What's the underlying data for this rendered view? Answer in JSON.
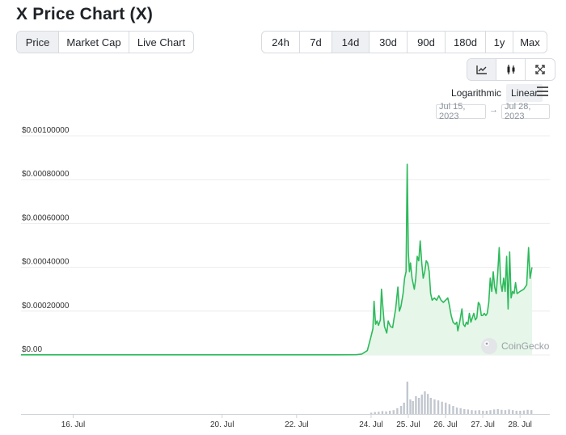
{
  "title": "X Price Chart (X)",
  "chart_tabs": [
    {
      "label": "Price",
      "active": true
    },
    {
      "label": "Market Cap",
      "active": false
    },
    {
      "label": "Live Chart",
      "active": false
    }
  ],
  "range_tabs": [
    {
      "label": "24h",
      "active": false
    },
    {
      "label": "7d",
      "active": false
    },
    {
      "label": "14d",
      "active": true
    },
    {
      "label": "30d",
      "active": false
    },
    {
      "label": "90d",
      "active": false
    },
    {
      "label": "180d",
      "active": false
    },
    {
      "label": "1y",
      "active": false
    },
    {
      "label": "Max",
      "active": false
    }
  ],
  "view_tabs": [
    {
      "icon": "line-chart-icon",
      "active": true
    },
    {
      "icon": "candlestick-icon",
      "active": false
    },
    {
      "icon": "expand-icon",
      "active": false
    }
  ],
  "scale": {
    "log_label": "Logarithmic",
    "linear_label": "Linear",
    "active": "Linear"
  },
  "date_range": {
    "from": "Jul 15, 2023",
    "arrow": "→",
    "to": "Jul 28, 2023"
  },
  "watermark": "CoinGecko",
  "colors": {
    "line": "#2dba5b",
    "area": "#e6f6e9",
    "volume": "#c2c7cf",
    "grid": "#ececec"
  },
  "chart_data": {
    "type": "area",
    "ylim": [
      0,
      0.001
    ],
    "y_ticks": [
      "$0.00",
      "$0.00020000",
      "$0.00040000",
      "$0.00060000",
      "$0.00080000",
      "$0.00100000"
    ],
    "y_tick_values": [
      0,
      0.0002,
      0.0004,
      0.0006,
      0.0008,
      0.001
    ],
    "x_ticks": [
      "16. Jul",
      "20. Jul",
      "22. Jul",
      "24. Jul",
      "25. Jul",
      "26. Jul",
      "27. Jul",
      "28. Jul"
    ],
    "xlim": [
      14.6,
      28.8
    ],
    "x_tick_values": [
      16.0,
      20.0,
      22.0,
      24.0,
      25.0,
      26.0,
      27.0,
      28.0
    ],
    "price": [
      [
        14.6,
        8.5e-07
      ],
      [
        16.0,
        8.5e-07
      ],
      [
        17.0,
        8.5e-07
      ],
      [
        18.0,
        8.5e-07
      ],
      [
        19.0,
        8.5e-07
      ],
      [
        20.0,
        8.5e-07
      ],
      [
        21.0,
        8.5e-07
      ],
      [
        22.0,
        8.5e-07
      ],
      [
        23.0,
        8.5e-07
      ],
      [
        23.6,
        1.2e-06
      ],
      [
        23.75,
        4e-06
      ],
      [
        23.9,
        2e-05
      ],
      [
        24.0,
        8.5e-05
      ],
      [
        24.05,
        0.00012
      ],
      [
        24.08,
        0.000245
      ],
      [
        24.12,
        0.00014
      ],
      [
        24.16,
        0.000155
      ],
      [
        24.2,
        0.000135
      ],
      [
        24.25,
        0.00016
      ],
      [
        24.28,
        0.0003
      ],
      [
        24.32,
        0.00021
      ],
      [
        24.36,
        0.00013
      ],
      [
        24.42,
        0.0001
      ],
      [
        24.46,
        0.000155
      ],
      [
        24.52,
        0.00013
      ],
      [
        24.58,
        0.000125
      ],
      [
        24.62,
        0.00017
      ],
      [
        24.66,
        0.00021
      ],
      [
        24.72,
        0.00031
      ],
      [
        24.76,
        0.0002
      ],
      [
        24.8,
        0.00022
      ],
      [
        24.86,
        0.00028
      ],
      [
        24.9,
        0.00035
      ],
      [
        24.94,
        0.00038
      ],
      [
        24.97,
        0.00087
      ],
      [
        25.0,
        0.00047
      ],
      [
        25.03,
        0.00038
      ],
      [
        25.06,
        0.00042
      ],
      [
        25.1,
        0.00035
      ],
      [
        25.16,
        0.0003
      ],
      [
        25.2,
        0.00035
      ],
      [
        25.24,
        0.00045
      ],
      [
        25.28,
        0.00043
      ],
      [
        25.32,
        0.00052
      ],
      [
        25.36,
        0.00042
      ],
      [
        25.4,
        0.00035
      ],
      [
        25.44,
        0.00038
      ],
      [
        25.48,
        0.00043
      ],
      [
        25.52,
        0.00042
      ],
      [
        25.56,
        0.00038
      ],
      [
        25.6,
        0.00028
      ],
      [
        25.64,
        0.00025
      ],
      [
        25.7,
        0.00026
      ],
      [
        25.76,
        0.00025
      ],
      [
        25.82,
        0.00027
      ],
      [
        25.88,
        0.00025
      ],
      [
        25.94,
        0.00024
      ],
      [
        26.0,
        0.00025
      ],
      [
        26.06,
        0.00026
      ],
      [
        26.1,
        0.00023
      ],
      [
        26.15,
        0.00018
      ],
      [
        26.2,
        0.00015
      ],
      [
        26.26,
        0.00014
      ],
      [
        26.3,
        0.00015
      ],
      [
        26.33,
        0.00011
      ],
      [
        26.38,
        0.00015
      ],
      [
        26.44,
        0.00021
      ],
      [
        26.48,
        0.00014
      ],
      [
        26.52,
        0.00013
      ],
      [
        26.56,
        0.00015
      ],
      [
        26.6,
        0.00014
      ],
      [
        26.64,
        0.00019
      ],
      [
        26.68,
        0.00015
      ],
      [
        26.72,
        0.00017
      ],
      [
        26.76,
        0.00019
      ],
      [
        26.8,
        0.00016
      ],
      [
        26.84,
        0.00017
      ],
      [
        26.88,
        0.00024
      ],
      [
        26.92,
        0.00023
      ],
      [
        26.96,
        0.00018
      ],
      [
        27.0,
        0.00018
      ],
      [
        27.04,
        0.00019
      ],
      [
        27.08,
        0.00018
      ],
      [
        27.12,
        0.00019
      ],
      [
        27.16,
        0.00024
      ],
      [
        27.2,
        0.00035
      ],
      [
        27.24,
        0.00029
      ],
      [
        27.28,
        0.00038
      ],
      [
        27.32,
        0.00031
      ],
      [
        27.36,
        0.00028
      ],
      [
        27.4,
        0.00037
      ],
      [
        27.44,
        0.00049
      ],
      [
        27.48,
        0.00033
      ],
      [
        27.52,
        0.00029
      ],
      [
        27.56,
        0.00035
      ],
      [
        27.6,
        0.00029
      ],
      [
        27.64,
        0.00045
      ],
      [
        27.68,
        0.00021
      ],
      [
        27.72,
        0.00047
      ],
      [
        27.76,
        0.00026
      ],
      [
        27.8,
        0.00029
      ],
      [
        27.84,
        0.00028
      ],
      [
        27.88,
        0.00033
      ],
      [
        27.92,
        0.00028
      ],
      [
        28.0,
        0.00029
      ],
      [
        28.1,
        0.0003
      ],
      [
        28.18,
        0.00032
      ],
      [
        28.23,
        0.00049
      ],
      [
        28.27,
        0.00035
      ],
      [
        28.32,
        0.0004
      ]
    ],
    "volume": [
      [
        24.0,
        0.04
      ],
      [
        24.1,
        0.06
      ],
      [
        24.2,
        0.07
      ],
      [
        24.3,
        0.09
      ],
      [
        24.4,
        0.08
      ],
      [
        24.5,
        0.1
      ],
      [
        24.6,
        0.12
      ],
      [
        24.7,
        0.18
      ],
      [
        24.8,
        0.25
      ],
      [
        24.88,
        0.35
      ],
      [
        24.97,
        1.0
      ],
      [
        25.05,
        0.45
      ],
      [
        25.12,
        0.4
      ],
      [
        25.2,
        0.55
      ],
      [
        25.28,
        0.5
      ],
      [
        25.36,
        0.6
      ],
      [
        25.44,
        0.7
      ],
      [
        25.52,
        0.62
      ],
      [
        25.6,
        0.5
      ],
      [
        25.7,
        0.45
      ],
      [
        25.8,
        0.42
      ],
      [
        25.9,
        0.38
      ],
      [
        26.0,
        0.35
      ],
      [
        26.1,
        0.3
      ],
      [
        26.2,
        0.25
      ],
      [
        26.3,
        0.2
      ],
      [
        26.4,
        0.18
      ],
      [
        26.5,
        0.15
      ],
      [
        26.6,
        0.14
      ],
      [
        26.7,
        0.12
      ],
      [
        26.8,
        0.11
      ],
      [
        26.9,
        0.12
      ],
      [
        27.0,
        0.1
      ],
      [
        27.1,
        0.1
      ],
      [
        27.2,
        0.12
      ],
      [
        27.3,
        0.14
      ],
      [
        27.4,
        0.15
      ],
      [
        27.5,
        0.13
      ],
      [
        27.6,
        0.12
      ],
      [
        27.7,
        0.14
      ],
      [
        27.8,
        0.12
      ],
      [
        27.9,
        0.1
      ],
      [
        28.0,
        0.1
      ],
      [
        28.1,
        0.11
      ],
      [
        28.2,
        0.13
      ],
      [
        28.3,
        0.12
      ]
    ]
  }
}
